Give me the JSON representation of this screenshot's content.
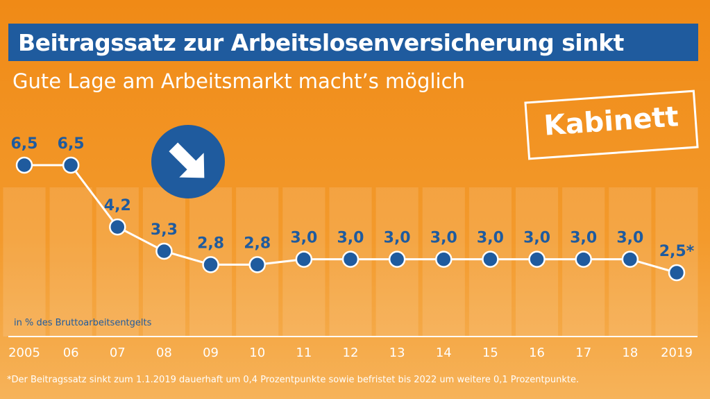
{
  "header": {
    "title": "Beitragssatz zur Arbeitslosenversicherung sinkt",
    "subtitle": "Gute Lage am Arbeitsmarkt macht’s möglich"
  },
  "stamp": {
    "label": "Kabinett"
  },
  "arrow_icon": "arrow-down-right-icon",
  "unit_label": "in % des Bruttoarbeitsentgelts",
  "footnote": "*Der Beitragssatz sinkt zum 1.1.2019 dauerhaft um 0,4 Prozentpunkte sowie befristet bis 2022 um weitere 0,1 Prozentpunkte.",
  "colors": {
    "background": "#f08a16",
    "accent_blue": "#1f5b9e",
    "line": "#ffffff"
  },
  "chart_data": {
    "type": "line",
    "title": "Beitragssatz zur Arbeitslosenversicherung sinkt",
    "subtitle": "Gute Lage am Arbeitsmarkt macht’s möglich",
    "xlabel": "",
    "ylabel": "in % des Bruttoarbeitsentgelts",
    "categories": [
      "2005",
      "06",
      "07",
      "08",
      "09",
      "10",
      "11",
      "12",
      "13",
      "14",
      "15",
      "16",
      "17",
      "18",
      "2019"
    ],
    "values": [
      6.5,
      6.5,
      4.2,
      3.3,
      2.8,
      2.8,
      3.0,
      3.0,
      3.0,
      3.0,
      3.0,
      3.0,
      3.0,
      3.0,
      2.5
    ],
    "value_labels": [
      "6,5",
      "6,5",
      "4,2",
      "3,3",
      "2,8",
      "2,8",
      "3,0",
      "3,0",
      "3,0",
      "3,0",
      "3,0",
      "3,0",
      "3,0",
      "3,0",
      "2,5*"
    ],
    "ylim": [
      0,
      7
    ],
    "grid": false,
    "legend": "none"
  }
}
